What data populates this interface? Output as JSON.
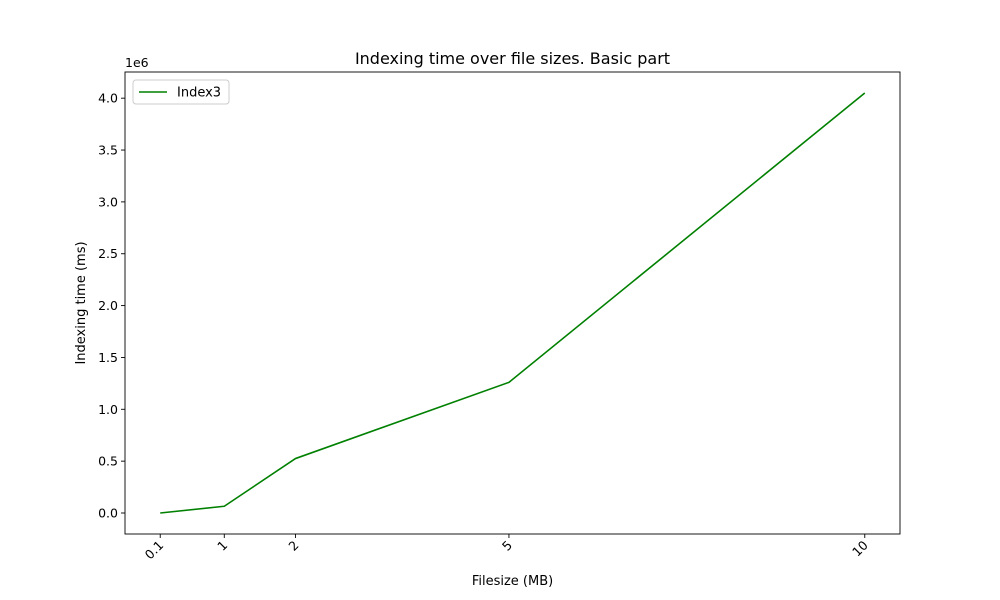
{
  "chart_data": {
    "type": "line",
    "title": "Indexing time over file sizes. Basic part",
    "xlabel": "Filesize (MB)",
    "ylabel": "Indexing time (ms)",
    "y_offset_label": "1e6",
    "x": [
      0.1,
      1,
      2,
      5,
      10
    ],
    "x_tick_labels": [
      "0.1",
      "1",
      "2",
      "5",
      "10"
    ],
    "y_ticks": [
      0.0,
      0.5,
      1.0,
      1.5,
      2.0,
      2.5,
      3.0,
      3.5,
      4.0
    ],
    "y_tick_labels": [
      "0.0",
      "0.5",
      "1.0",
      "1.5",
      "2.0",
      "2.5",
      "3.0",
      "3.5",
      "4.0"
    ],
    "xlim": [
      -0.395,
      10.495
    ],
    "ylim": [
      -202500,
      4252500
    ],
    "grid": false,
    "legend_position": "upper-left",
    "series": [
      {
        "name": "Index3",
        "color": "#008000",
        "values": [
          0,
          65000,
          525000,
          1260000,
          4050000
        ]
      }
    ]
  }
}
